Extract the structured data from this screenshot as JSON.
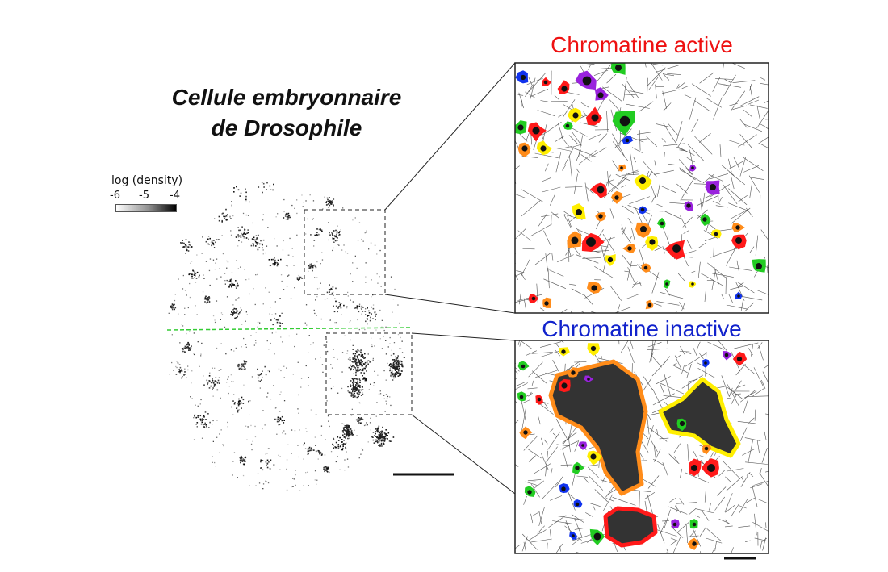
{
  "figure": {
    "main_title": "Cellule embryonnaire\nde Drosophile",
    "colorbar": {
      "label": "log (density)",
      "ticks": [
        "-6",
        "-5",
        "-4"
      ]
    },
    "panels": [
      {
        "title": "Chromatine active",
        "title_color": "#ee1111"
      },
      {
        "title": "Chromatine inactive",
        "title_color": "#1122cc"
      }
    ],
    "divider_color": "#33cc33",
    "cluster_colors": [
      "#ff1a1a",
      "#ff8c1a",
      "#ffee00",
      "#22cc22",
      "#9922dd",
      "#1133ee"
    ]
  }
}
